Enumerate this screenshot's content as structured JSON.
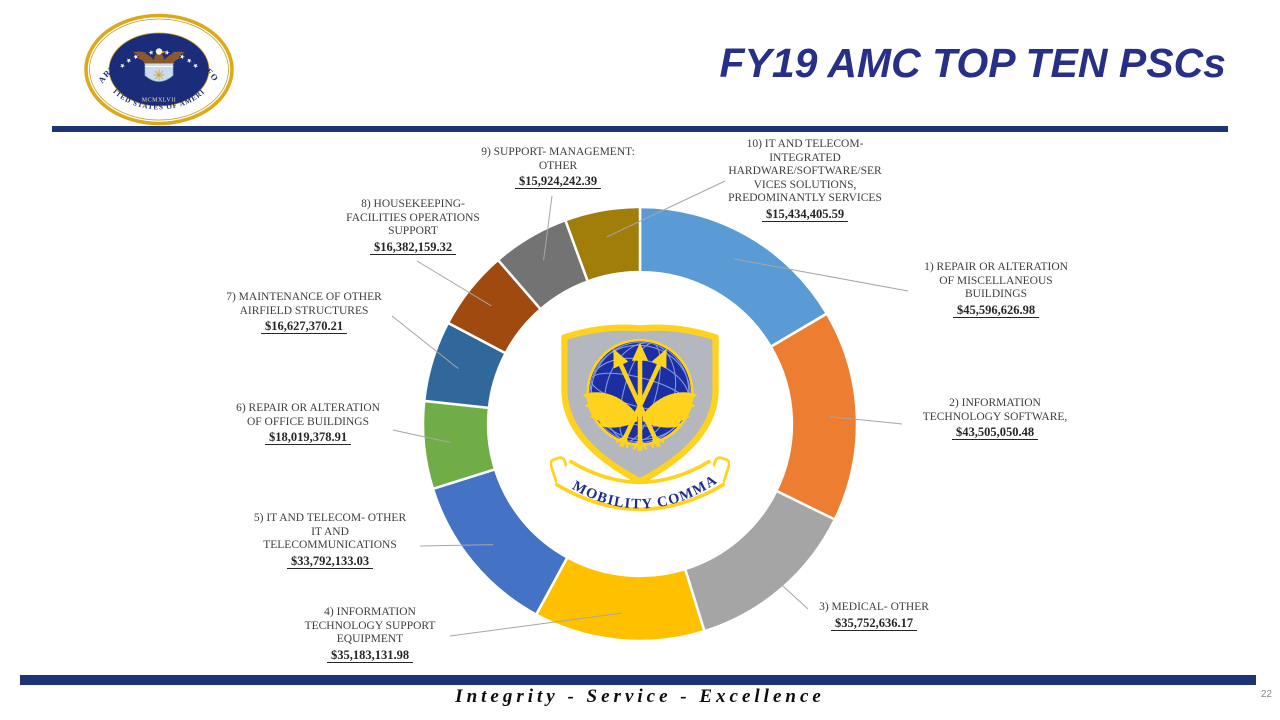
{
  "header": {
    "title": "FY19 AMC TOP TEN PSCs"
  },
  "seal": {
    "top_text": "DEPARTMENT OF THE AIR FORCE",
    "bottom_text": "UNITED STATES OF AMERICA",
    "year_text": "MCMXLVII",
    "stars": "★ ★ ★ ★ ★ ★ ★ ★ ★ ★ ★"
  },
  "center_logo": {
    "banner": "AIR MOBILITY COMMAND"
  },
  "footer": {
    "motto": "Integrity - Service - Excellence",
    "page_number": "22"
  },
  "chart_data": {
    "type": "donut",
    "title": "FY19 AMC TOP TEN PSCs",
    "unit": "USD",
    "total": 276217135.06,
    "start_angle_deg": 0,
    "direction": "clockwise",
    "hole_ratio": 0.7,
    "leader_line_color": "#A6A6A6",
    "segments": [
      {
        "rank": 1,
        "label_lines": [
          "1) REPAIR OR ALTERATION",
          "OF MISCELLANEOUS",
          "BUILDINGS"
        ],
        "value": 45596626.98,
        "value_label": "$45,596,626.98",
        "color": "#5B9BD5"
      },
      {
        "rank": 2,
        "label_lines": [
          "2) INFORMATION",
          "TECHNOLOGY SOFTWARE,"
        ],
        "value": 43505050.48,
        "value_label": "$43,505,050.48",
        "color": "#ED7D31"
      },
      {
        "rank": 3,
        "label_lines": [
          "3) MEDICAL- OTHER"
        ],
        "value": 35752636.17,
        "value_label": "$35,752,636.17",
        "color": "#A5A5A5"
      },
      {
        "rank": 4,
        "label_lines": [
          "4) INFORMATION",
          "TECHNOLOGY SUPPORT",
          "EQUIPMENT"
        ],
        "value": 35183131.98,
        "value_label": "$35,183,131.98",
        "color": "#FFC000"
      },
      {
        "rank": 5,
        "label_lines": [
          "5) IT AND TELECOM- OTHER",
          "IT AND",
          "TELECOMMUNICATIONS"
        ],
        "value": 33792133.03,
        "value_label": "$33,792,133.03",
        "color": "#4472C4"
      },
      {
        "rank": 6,
        "label_lines": [
          "6) REPAIR OR ALTERATION",
          "OF OFFICE BUILDINGS"
        ],
        "value": 18019378.91,
        "value_label": "$18,019,378.91",
        "color": "#70AD47"
      },
      {
        "rank": 7,
        "label_lines": [
          "7) MAINTENANCE OF OTHER",
          "AIRFIELD STRUCTURES"
        ],
        "value": 16627370.21,
        "value_label": "$16,627,370.21",
        "color": "#31689B"
      },
      {
        "rank": 8,
        "label_lines": [
          "8) HOUSEKEEPING-",
          "FACILITIES OPERATIONS",
          "SUPPORT"
        ],
        "value": 16382159.32,
        "value_label": "$16,382,159.32",
        "color": "#A04A10"
      },
      {
        "rank": 9,
        "label_lines": [
          "9) SUPPORT- MANAGEMENT:",
          "OTHER"
        ],
        "value": 15924242.39,
        "value_label": "$15,924,242.39",
        "color": "#737373"
      },
      {
        "rank": 10,
        "label_lines": [
          "10) IT AND TELECOM-",
          "INTEGRATED",
          "HARDWARE/SOFTWARE/SER",
          "VICES  SOLUTIONS,",
          "PREDOMINANTLY SERVICES"
        ],
        "value": 15434405.59,
        "value_label": "$15,434,405.59",
        "color": "#A17D0A"
      }
    ]
  }
}
